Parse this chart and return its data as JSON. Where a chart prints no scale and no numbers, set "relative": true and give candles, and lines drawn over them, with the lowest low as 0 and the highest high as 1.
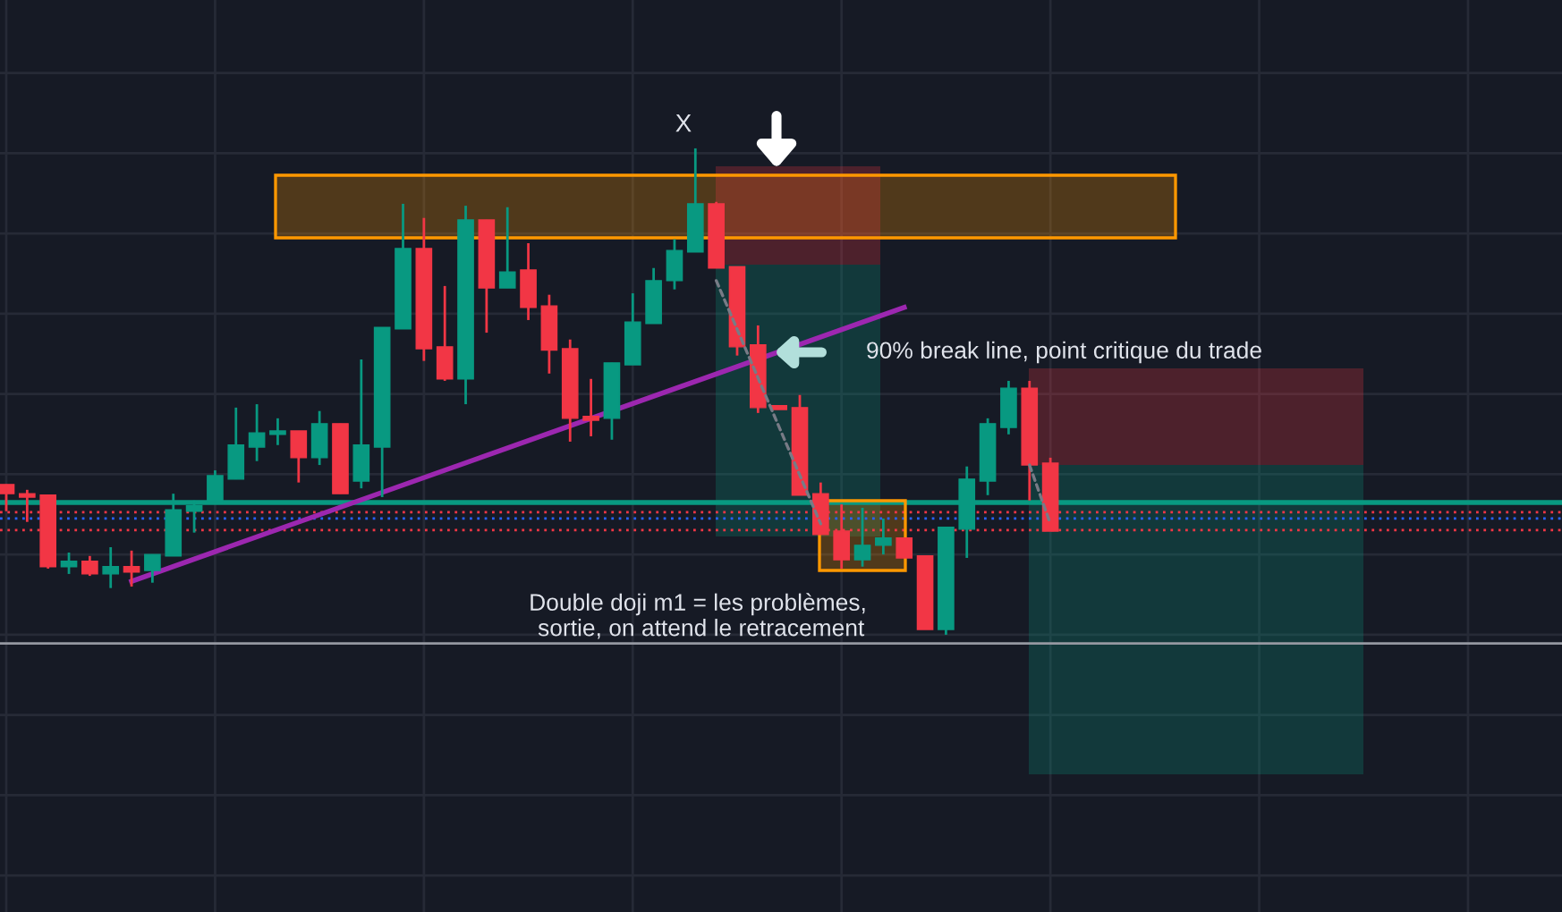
{
  "chart_data": {
    "type": "candlestick",
    "relative": true,
    "tick_labels": false,
    "grid": true,
    "categories": [
      null,
      null,
      null,
      null,
      null,
      null,
      null,
      null,
      null,
      null,
      null,
      null,
      null,
      null,
      null,
      null,
      null,
      null,
      null,
      null,
      null,
      null,
      null,
      null,
      null,
      null,
      null,
      null,
      null,
      null,
      null,
      null,
      null,
      null,
      null,
      null,
      null,
      null,
      null,
      null,
      null,
      null,
      null,
      null,
      null,
      null,
      null,
      null,
      null,
      null,
      null
    ],
    "colors": [
      "#f23645",
      "#f23645",
      "#f23645",
      "#089981",
      "#f23645",
      "#089981",
      "#f23645",
      "#089981",
      "#089981",
      "#089981",
      "#089981",
      "#089981",
      "#089981",
      "#089981",
      "#f23645",
      "#089981",
      "#f23645",
      "#089981",
      "#089981",
      "#089981",
      "#f23645",
      "#f23645",
      "#089981",
      "#f23645",
      "#089981",
      "#f23645",
      "#f23645",
      "#f23645",
      "#f23645",
      "#089981",
      "#089981",
      "#089981",
      "#089981",
      "#089981",
      "#f23645",
      "#f23645",
      "#f23645",
      "#f23645",
      "#f23645",
      "#f23645",
      "#f23645",
      "#089981",
      "#089981",
      "#f23645",
      "#f23645",
      "#089981",
      "#089981",
      "#089981",
      "#089981",
      "#f23645",
      "#f23645"
    ],
    "ohlc": [
      [
        0.309,
        0.309,
        0.254,
        0.29
      ],
      [
        0.29,
        0.298,
        0.232,
        0.283
      ],
      [
        0.287,
        0.287,
        0.136,
        0.14
      ],
      [
        0.14,
        0.169,
        0.125,
        0.151
      ],
      [
        0.151,
        0.162,
        0.121,
        0.125
      ],
      [
        0.125,
        0.18,
        0.096,
        0.14
      ],
      [
        0.14,
        0.173,
        0.099,
        0.129
      ],
      [
        0.132,
        0.165,
        0.107,
        0.165
      ],
      [
        0.162,
        0.29,
        0.162,
        0.257
      ],
      [
        0.254,
        0.276,
        0.21,
        0.265
      ],
      [
        0.272,
        0.338,
        0.272,
        0.327
      ],
      [
        0.32,
        0.467,
        0.32,
        0.39
      ],
      [
        0.386,
        0.474,
        0.357,
        0.415
      ],
      [
        0.412,
        0.445,
        0.39,
        0.419
      ],
      [
        0.419,
        0.419,
        0.313,
        0.364
      ],
      [
        0.364,
        0.46,
        0.349,
        0.434
      ],
      [
        0.434,
        0.434,
        0.29,
        0.29
      ],
      [
        0.316,
        0.566,
        0.301,
        0.39
      ],
      [
        0.386,
        0.632,
        0.283,
        0.632
      ],
      [
        0.629,
        0.886,
        0.629,
        0.794
      ],
      [
        0.794,
        0.857,
        0.563,
        0.588
      ],
      [
        0.592,
        0.717,
        0.522,
        0.526
      ],
      [
        0.526,
        0.882,
        0.474,
        0.853
      ],
      [
        0.853,
        0.853,
        0.621,
        0.713
      ],
      [
        0.713,
        0.879,
        0.713,
        0.746
      ],
      [
        0.75,
        0.805,
        0.647,
        0.673
      ],
      [
        0.676,
        0.699,
        0.537,
        0.585
      ],
      [
        0.588,
        0.607,
        0.397,
        0.445
      ],
      [
        0.449,
        0.526,
        0.408,
        0.441
      ],
      [
        0.445,
        0.559,
        0.401,
        0.559
      ],
      [
        0.555,
        0.702,
        0.555,
        0.643
      ],
      [
        0.64,
        0.754,
        0.64,
        0.728
      ],
      [
        0.728,
        0.813,
        0.71,
        0.79
      ],
      [
        0.787,
        1.0,
        0.787,
        0.886
      ],
      [
        0.886,
        0.89,
        0.754,
        0.754
      ],
      [
        0.757,
        0.757,
        0.574,
        0.592
      ],
      [
        0.596,
        0.636,
        0.456,
        0.467
      ],
      [
        0.471,
        0.471,
        0.463,
        0.463
      ],
      [
        0.467,
        0.493,
        0.287,
        0.287
      ],
      [
        0.29,
        0.313,
        0.206,
        0.206
      ],
      [
        0.213,
        0.268,
        0.136,
        0.154
      ],
      [
        0.154,
        0.261,
        0.14,
        0.184
      ],
      [
        0.184,
        0.239,
        0.165,
        0.199
      ],
      [
        0.199,
        0.199,
        0.158,
        0.158
      ],
      [
        0.162,
        0.162,
        0.011,
        0.011
      ],
      [
        0.011,
        0.221,
        0.0,
        0.221
      ],
      [
        0.217,
        0.346,
        0.158,
        0.32
      ],
      [
        0.316,
        0.445,
        0.287,
        0.434
      ],
      [
        0.426,
        0.522,
        0.412,
        0.507
      ],
      [
        0.507,
        0.522,
        0.276,
        0.349
      ],
      [
        0.353,
        0.364,
        0.213,
        0.213
      ]
    ],
    "series": [
      {
        "type": "line",
        "color": "#9c27b0",
        "values": [
          null,
          null,
          null,
          null,
          null,
          null,
          0.11,
          null,
          null,
          null,
          null,
          null,
          null,
          null,
          null,
          null,
          null,
          null,
          null,
          null,
          null,
          null,
          null,
          null,
          null,
          null,
          null,
          null,
          null,
          null,
          null,
          null,
          null,
          null,
          null,
          null,
          null,
          null,
          null,
          null,
          null,
          null,
          null,
          0.673,
          null,
          null,
          null,
          null,
          null,
          null,
          null
        ]
      },
      {
        "type": "line",
        "color": "#787b86",
        "line_style": "dashed",
        "values": [
          null,
          null,
          null,
          null,
          null,
          null,
          null,
          null,
          null,
          null,
          null,
          null,
          null,
          null,
          null,
          null,
          null,
          null,
          null,
          null,
          null,
          null,
          null,
          null,
          null,
          null,
          null,
          null,
          null,
          null,
          null,
          null,
          null,
          null,
          0.728,
          null,
          null,
          null,
          null,
          0.228,
          null,
          null,
          null,
          null,
          null,
          null,
          null,
          null,
          null,
          null,
          null
        ]
      },
      {
        "type": "line",
        "color": "#787b86",
        "line_style": "dashed",
        "values": [
          null,
          null,
          null,
          null,
          null,
          null,
          null,
          null,
          null,
          null,
          null,
          null,
          null,
          null,
          null,
          null,
          null,
          null,
          null,
          null,
          null,
          null,
          null,
          null,
          null,
          null,
          null,
          null,
          null,
          null,
          null,
          null,
          null,
          null,
          null,
          null,
          null,
          null,
          null,
          null,
          null,
          null,
          null,
          null,
          null,
          null,
          null,
          null,
          null,
          0.349,
          0.228
        ]
      }
    ],
    "ref_lines": [
      {
        "axis": "y",
        "value": 0.272,
        "color": "#089981",
        "line_style": "solid"
      },
      {
        "axis": "y",
        "value": 0.252,
        "color": "#f23645",
        "line_style": "dotted"
      },
      {
        "axis": "y",
        "value": 0.239,
        "color": "#2962ff",
        "line_style": "dotted"
      },
      {
        "axis": "y",
        "value": 0.215,
        "color": "#f23645",
        "line_style": "dotted"
      },
      {
        "axis": "y",
        "value": -0.018,
        "color": "#9598a1",
        "line_style": "solid"
      }
    ],
    "annotations": [
      "X",
      "90% break line, point critique du trade",
      "Double doji m1 = les problèmes,\n sortie, on attend le retracement"
    ]
  }
}
